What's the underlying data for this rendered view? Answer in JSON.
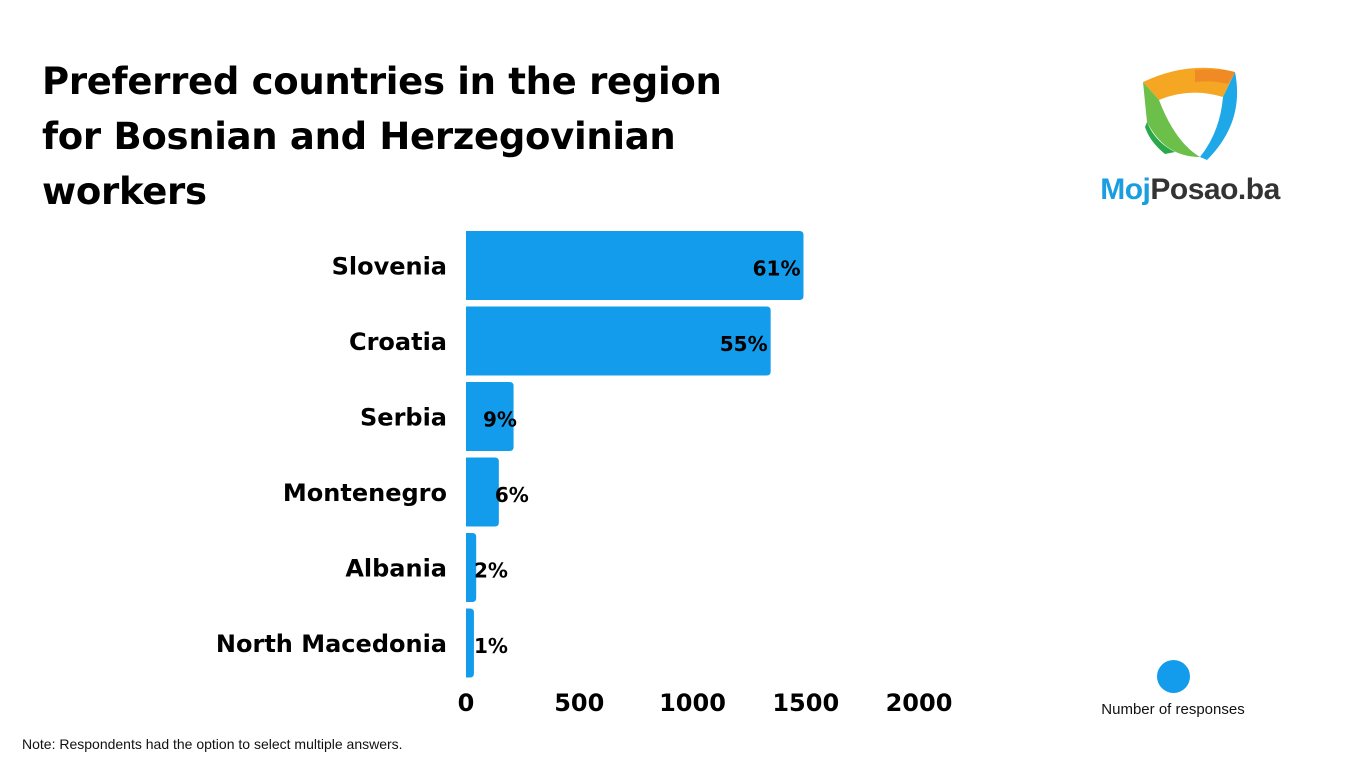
{
  "logo": {
    "text_part1": "Moj",
    "text_part2": "Posao.ba",
    "colors": {
      "blue": "#1a9ee0",
      "dark": "#333333"
    }
  },
  "chart_data": {
    "type": "bar",
    "orientation": "horizontal",
    "title": "Preferred countries in the region for Bosnian and Herzegovinian workers",
    "categories": [
      "Slovenia",
      "Croatia",
      "Serbia",
      "Montenegro",
      "Albania",
      "North Macedonia"
    ],
    "values": [
      1490,
      1345,
      210,
      145,
      45,
      35
    ],
    "data_labels": [
      "61%",
      "55%",
      "9%",
      "6%",
      "2%",
      "1%"
    ],
    "xlim": [
      0,
      2000
    ],
    "xticks": [
      "0",
      "500",
      "1000",
      "1500",
      "2000"
    ],
    "grid": false,
    "legend": {
      "entries": [
        "Number of responses"
      ],
      "placement": "bottom-right"
    },
    "bar_color": "#139ceb",
    "note": "Note: Respondents had the option to select multiple answers."
  }
}
